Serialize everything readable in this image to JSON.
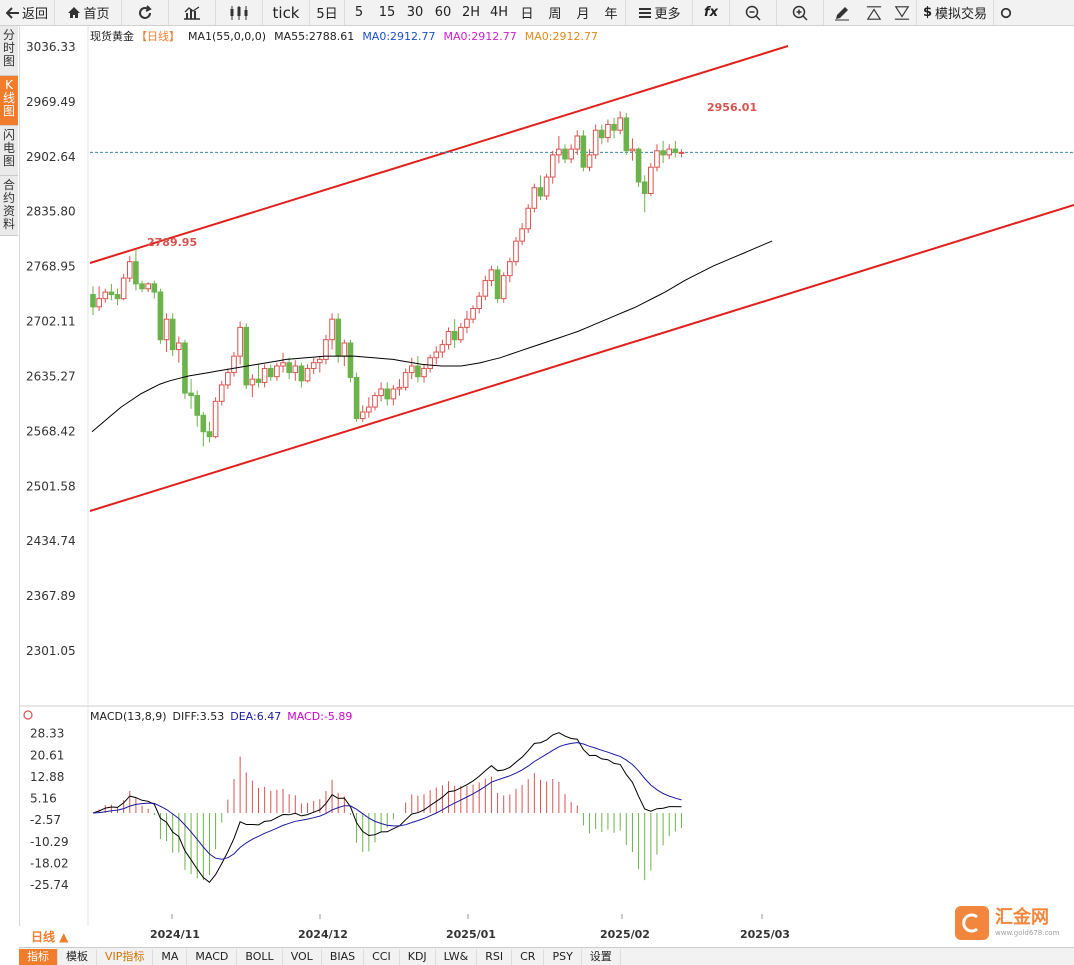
{
  "toolbar": {
    "back": "返回",
    "home": "首页",
    "tick": "tick",
    "periods": [
      "5日",
      "5",
      "15",
      "30",
      "60",
      "2H",
      "4H",
      "日",
      "周",
      "月",
      "年"
    ],
    "more": "更多",
    "fx": "fx",
    "sim_trade": "模拟交易"
  },
  "side_tabs": [
    "分时图",
    "K线图",
    "闪电图",
    "合约资料"
  ],
  "legend": {
    "symbol": "现货黄金",
    "period": "【日线】",
    "ma1": "MA1(55,0,0,0)",
    "ma55": "MA55:2788.61",
    "ma0a": "MA0:2912.77",
    "ma0b": "MA0:2912.77",
    "ma0c": "MA0:2912.77"
  },
  "macd_legend": {
    "name": "MACD(13,8,9)",
    "diff": "DIFF:3.53",
    "dea": "DEA:6.47",
    "macd": "MACD:-5.89"
  },
  "timeframe": "日线 ▲",
  "bottom_tabs": [
    "指标",
    "模板",
    "VIP指标",
    "MA",
    "MACD",
    "BOLL",
    "VOL",
    "BIAS",
    "CCI",
    "KDJ",
    "LW&",
    "RSI",
    "CR",
    "PSY",
    "设置"
  ],
  "logo": {
    "name": "汇金网",
    "url": "www.gold678.com"
  },
  "chart_data": [
    {
      "type": "candlestick",
      "yticks": [
        "3036.33",
        "2969.49",
        "2902.64",
        "2835.80",
        "2768.95",
        "2702.11",
        "2635.27",
        "2568.42",
        "2501.58",
        "2434.74",
        "2367.89",
        "2301.05"
      ],
      "ylim": [
        2301.05,
        3036.33
      ],
      "xticks": [
        "2024/11",
        "2024/12",
        "2025/01",
        "2025/02",
        "2025/03"
      ],
      "annotations": [
        "2789.95",
        "2956.01"
      ],
      "current_price": 2908.0,
      "colors": {
        "up": "#d9534f",
        "down": "#6bb34a",
        "ma": "#000000",
        "trend": "#e0201a",
        "last": "#3a8aa8"
      },
      "candles": [
        [
          2735,
          2745,
          2720,
          2710
        ],
        [
          2720,
          2745,
          2730,
          2715
        ],
        [
          2730,
          2742,
          2738,
          2725
        ],
        [
          2738,
          2748,
          2735,
          2728
        ],
        [
          2735,
          2742,
          2730,
          2722
        ],
        [
          2730,
          2760,
          2755,
          2728
        ],
        [
          2755,
          2782,
          2775,
          2750
        ],
        [
          2775,
          2790,
          2748,
          2740
        ],
        [
          2748,
          2752,
          2742,
          2738
        ],
        [
          2742,
          2750,
          2748,
          2738
        ],
        [
          2748,
          2752,
          2738,
          2730
        ],
        [
          2738,
          2742,
          2680,
          2675
        ],
        [
          2680,
          2712,
          2705,
          2665
        ],
        [
          2705,
          2712,
          2668,
          2660
        ],
        [
          2668,
          2684,
          2676,
          2652
        ],
        [
          2676,
          2680,
          2615,
          2608
        ],
        [
          2615,
          2632,
          2612,
          2596
        ],
        [
          2612,
          2618,
          2588,
          2574
        ],
        [
          2588,
          2592,
          2568,
          2550
        ],
        [
          2568,
          2580,
          2562,
          2555
        ],
        [
          2562,
          2610,
          2605,
          2560
        ],
        [
          2605,
          2630,
          2625,
          2600
        ],
        [
          2625,
          2645,
          2640,
          2620
        ],
        [
          2640,
          2665,
          2660,
          2635
        ],
        [
          2660,
          2702,
          2695,
          2650
        ],
        [
          2695,
          2700,
          2625,
          2620
        ],
        [
          2625,
          2638,
          2632,
          2610
        ],
        [
          2632,
          2650,
          2628,
          2622
        ],
        [
          2628,
          2650,
          2645,
          2622
        ],
        [
          2645,
          2650,
          2635,
          2630
        ],
        [
          2635,
          2652,
          2648,
          2630
        ],
        [
          2648,
          2664,
          2652,
          2640
        ],
        [
          2652,
          2658,
          2640,
          2632
        ],
        [
          2640,
          2655,
          2648,
          2630
        ],
        [
          2648,
          2652,
          2630,
          2622
        ],
        [
          2630,
          2650,
          2645,
          2628
        ],
        [
          2645,
          2658,
          2652,
          2638
        ],
        [
          2652,
          2660,
          2656,
          2640
        ],
        [
          2656,
          2686,
          2680,
          2650
        ],
        [
          2680,
          2712,
          2705,
          2668
        ],
        [
          2705,
          2712,
          2660,
          2652
        ],
        [
          2660,
          2680,
          2676,
          2648
        ],
        [
          2676,
          2680,
          2634,
          2628
        ],
        [
          2634,
          2640,
          2584,
          2580
        ],
        [
          2584,
          2600,
          2592,
          2580
        ],
        [
          2592,
          2610,
          2598,
          2585
        ],
        [
          2598,
          2616,
          2612,
          2594
        ],
        [
          2612,
          2628,
          2620,
          2605
        ],
        [
          2620,
          2628,
          2608,
          2600
        ],
        [
          2608,
          2625,
          2620,
          2600
        ],
        [
          2620,
          2632,
          2622,
          2612
        ],
        [
          2622,
          2645,
          2640,
          2618
        ],
        [
          2640,
          2658,
          2648,
          2632
        ],
        [
          2648,
          2660,
          2635,
          2628
        ],
        [
          2635,
          2650,
          2645,
          2628
        ],
        [
          2645,
          2662,
          2658,
          2640
        ],
        [
          2658,
          2672,
          2665,
          2650
        ],
        [
          2665,
          2680,
          2674,
          2658
        ],
        [
          2674,
          2695,
          2690,
          2668
        ],
        [
          2690,
          2705,
          2680,
          2670
        ],
        [
          2680,
          2700,
          2695,
          2676
        ],
        [
          2695,
          2715,
          2705,
          2688
        ],
        [
          2705,
          2722,
          2718,
          2700
        ],
        [
          2718,
          2738,
          2733,
          2712
        ],
        [
          2733,
          2758,
          2752,
          2728
        ],
        [
          2752,
          2770,
          2765,
          2745
        ],
        [
          2765,
          2770,
          2730,
          2725
        ],
        [
          2730,
          2762,
          2758,
          2725
        ],
        [
          2758,
          2780,
          2775,
          2750
        ],
        [
          2775,
          2805,
          2800,
          2770
        ],
        [
          2800,
          2822,
          2815,
          2795
        ],
        [
          2815,
          2845,
          2840,
          2810
        ],
        [
          2840,
          2870,
          2865,
          2835
        ],
        [
          2865,
          2880,
          2855,
          2850
        ],
        [
          2855,
          2882,
          2878,
          2850
        ],
        [
          2878,
          2910,
          2905,
          2870
        ],
        [
          2905,
          2928,
          2912,
          2895
        ],
        [
          2912,
          2918,
          2900,
          2895
        ],
        [
          2900,
          2918,
          2912,
          2895
        ],
        [
          2912,
          2935,
          2928,
          2905
        ],
        [
          2928,
          2935,
          2890,
          2885
        ],
        [
          2890,
          2912,
          2905,
          2885
        ],
        [
          2905,
          2942,
          2935,
          2900
        ],
        [
          2935,
          2942,
          2926,
          2918
        ],
        [
          2926,
          2948,
          2942,
          2920
        ],
        [
          2942,
          2950,
          2935,
          2925
        ],
        [
          2935,
          2958,
          2950,
          2930
        ],
        [
          2950,
          2956,
          2910,
          2905
        ],
        [
          2910,
          2925,
          2912,
          2898
        ],
        [
          2912,
          2914,
          2872,
          2866
        ],
        [
          2872,
          2880,
          2858,
          2835
        ],
        [
          2858,
          2895,
          2890,
          2855
        ],
        [
          2890,
          2918,
          2910,
          2885
        ],
        [
          2910,
          2922,
          2905,
          2895
        ],
        [
          2905,
          2918,
          2912,
          2900
        ],
        [
          2912,
          2922,
          2908,
          2902
        ],
        [
          2908,
          2912,
          2908,
          2902
        ]
      ],
      "ma55": [
        2568,
        2578,
        2588,
        2598,
        2606,
        2614,
        2620,
        2626,
        2630,
        2633,
        2636,
        2638,
        2640,
        2642,
        2644,
        2646,
        2648,
        2650,
        2652,
        2654,
        2656,
        2657,
        2658,
        2659,
        2660,
        2660,
        2660,
        2660,
        2659,
        2658,
        2657,
        2656,
        2654,
        2652,
        2650,
        2649,
        2648,
        2648,
        2648,
        2650,
        2652,
        2655,
        2658,
        2662,
        2666,
        2670,
        2674,
        2678,
        2682,
        2686,
        2690,
        2695,
        2700,
        2705,
        2710,
        2715,
        2720,
        2726,
        2732,
        2738,
        2745,
        2752,
        2758,
        2764,
        2770,
        2775,
        2780,
        2785,
        2790,
        2795,
        2800
      ],
      "ma55_start": 0
    },
    {
      "type": "macd",
      "yticks": [
        "28.33",
        "20.61",
        "12.88",
        "5.16",
        "-2.57",
        "-10.29",
        "-18.02",
        "-25.74"
      ],
      "ylim": [
        -30,
        30
      ],
      "series": [
        {
          "name": "DIFF",
          "color": "#000000"
        },
        {
          "name": "DEA",
          "color": "#1a1aa0"
        },
        {
          "name": "MACD",
          "color": "#cc00cc"
        }
      ]
    }
  ]
}
